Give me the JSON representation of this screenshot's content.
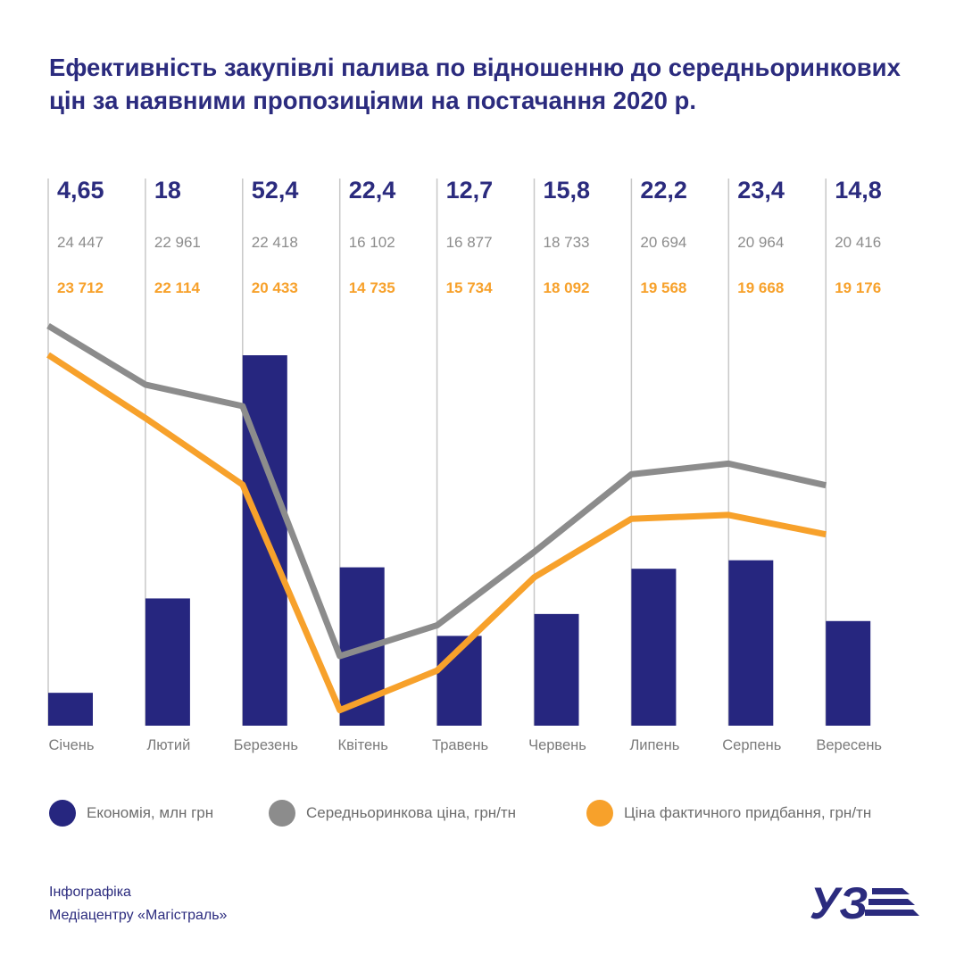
{
  "title": {
    "line1": "Ефективність закупівлі палива по відношенню до середньоринкових",
    "line2": "цін за наявними пропозиціями на постачання 2020 р."
  },
  "colors": {
    "title": "#2b2b7e",
    "savings": "#26267f",
    "market": "#8c8c8c",
    "actual": "#f7a12b",
    "gridline": "#c8c8c8",
    "month_text": "#7a7a7a"
  },
  "chart_data": {
    "type": "bar",
    "categories": [
      "Січень",
      "Лютий",
      "Березень",
      "Квітень",
      "Травень",
      "Червень",
      "Липень",
      "Серпень",
      "Вересень"
    ],
    "series": [
      {
        "name": "Економія, млн грн",
        "kind": "bar",
        "values": [
          4.65,
          18,
          52.4,
          22.4,
          12.7,
          15.8,
          22.2,
          23.4,
          14.8
        ],
        "labels": [
          "4,65",
          "18",
          "52,4",
          "22,4",
          "12,7",
          "15,8",
          "22,2",
          "23,4",
          "14,8"
        ],
        "color": "#26267f"
      },
      {
        "name": "Середньоринкова ціна, грн/тн",
        "kind": "line",
        "values": [
          24447,
          22961,
          22418,
          16102,
          16877,
          18733,
          20694,
          20964,
          20416
        ],
        "labels": [
          "24 447",
          "22 961",
          "22 418",
          "16 102",
          "16 877",
          "18 733",
          "20 694",
          "20 964",
          "20 416"
        ],
        "color": "#8c8c8c"
      },
      {
        "name": "Ціна фактичного придбання, грн/тн",
        "kind": "line",
        "values": [
          23712,
          22114,
          20433,
          14735,
          15734,
          18092,
          19568,
          19668,
          19176
        ],
        "labels": [
          "23 712",
          "22 114",
          "20 433",
          "14 735",
          "15 734",
          "18 092",
          "19 568",
          "19 668",
          "19 176"
        ],
        "color": "#f7a12b"
      }
    ],
    "legend_position": "bottom",
    "grid": false
  },
  "footer": {
    "line1": "Інфографіка",
    "line2": "Медіацентру «Магістраль»"
  },
  "logo": {
    "text": "УЗ"
  }
}
